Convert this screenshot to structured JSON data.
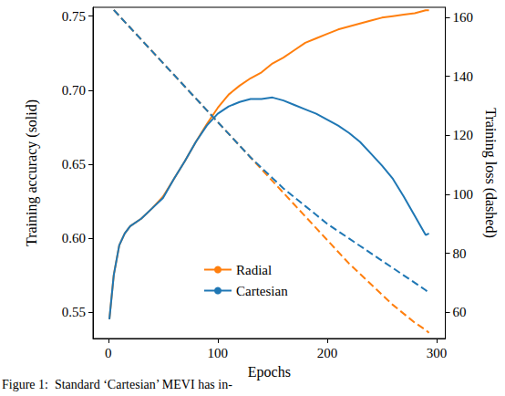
{
  "chart_data": {
    "type": "line",
    "x_label": "Epochs",
    "y_label": "Training accuracy (solid)",
    "y2_label": "Training loss (dashed)",
    "annotations": [
      "Figure 1:  Standard ‘Cartesian’ MEVI has in-"
    ],
    "xlim": [
      -14,
      308
    ],
    "xticks": [
      0,
      100,
      200,
      300
    ],
    "ylim": [
      0.532,
      0.756
    ],
    "yticks": [
      0.55,
      {
        "value": 0.6,
        "label": "0.60"
      },
      0.65,
      {
        "value": 0.7,
        "label": "0.70"
      },
      0.75
    ],
    "y2lim": [
      51.1,
      163.4
    ],
    "y2ticks": [
      60,
      80,
      100,
      120,
      140,
      160
    ],
    "grid": false,
    "legend": "bottom",
    "x": [
      1,
      5,
      10,
      15,
      20,
      30,
      40,
      50,
      60,
      70,
      80,
      90,
      100,
      110,
      120,
      130,
      140,
      150,
      160,
      170,
      180,
      190,
      200,
      210,
      220,
      230,
      240,
      250,
      260,
      270,
      280,
      290,
      293
    ],
    "series": [
      {
        "name": "Radial",
        "color": "#ff7f0e",
        "line_style": "solid",
        "values": [
          0.545,
          0.575,
          0.595,
          0.603,
          0.608,
          0.613,
          0.62,
          0.628,
          0.64,
          0.652,
          0.665,
          0.677,
          0.688,
          0.697,
          0.703,
          0.708,
          0.712,
          0.718,
          0.722,
          0.727,
          0.732,
          0.735,
          0.738,
          0.741,
          0.743,
          0.745,
          0.747,
          0.749,
          0.75,
          0.751,
          0.752,
          0.754,
          0.754
        ]
      },
      {
        "name": "Cartesian",
        "color": "#1f77b4",
        "line_style": "solid",
        "values": [
          0.545,
          0.575,
          0.595,
          0.603,
          0.608,
          0.613,
          0.62,
          0.627,
          0.64,
          0.652,
          0.665,
          0.676,
          0.684,
          0.689,
          0.692,
          0.694,
          0.694,
          0.695,
          0.693,
          0.69,
          0.687,
          0.684,
          0.68,
          0.676,
          0.671,
          0.665,
          0.657,
          0.649,
          0.64,
          0.628,
          0.615,
          0.602,
          0.603
        ]
      },
      {
        "name": "Radial",
        "color": "#ff7f0e",
        "line_style": "dashed",
        "axis": "y2",
        "values": [
          null,
          162.5,
          160.5,
          158.5,
          156.5,
          152.5,
          148.5,
          144.5,
          140.5,
          136.5,
          132.5,
          128.5,
          124.5,
          120.5,
          116.5,
          112.5,
          108.5,
          104.5,
          100.5,
          96.5,
          92.5,
          88.5,
          84.5,
          80.5,
          76.5,
          73,
          69.5,
          66,
          62.5,
          59.5,
          56.5,
          54,
          53
        ]
      },
      {
        "name": "Cartesian",
        "color": "#1f77b4",
        "line_style": "dashed",
        "axis": "y2",
        "values": [
          null,
          162.5,
          160.5,
          158.5,
          156.5,
          152.5,
          148.5,
          144.5,
          140.5,
          136.5,
          132.5,
          128.5,
          124.5,
          120.5,
          116.5,
          112.5,
          109,
          105.5,
          102,
          99,
          96,
          93,
          90,
          87.5,
          85,
          82.5,
          80,
          77.5,
          75,
          72.5,
          70,
          67.5,
          66.5
        ]
      }
    ]
  }
}
